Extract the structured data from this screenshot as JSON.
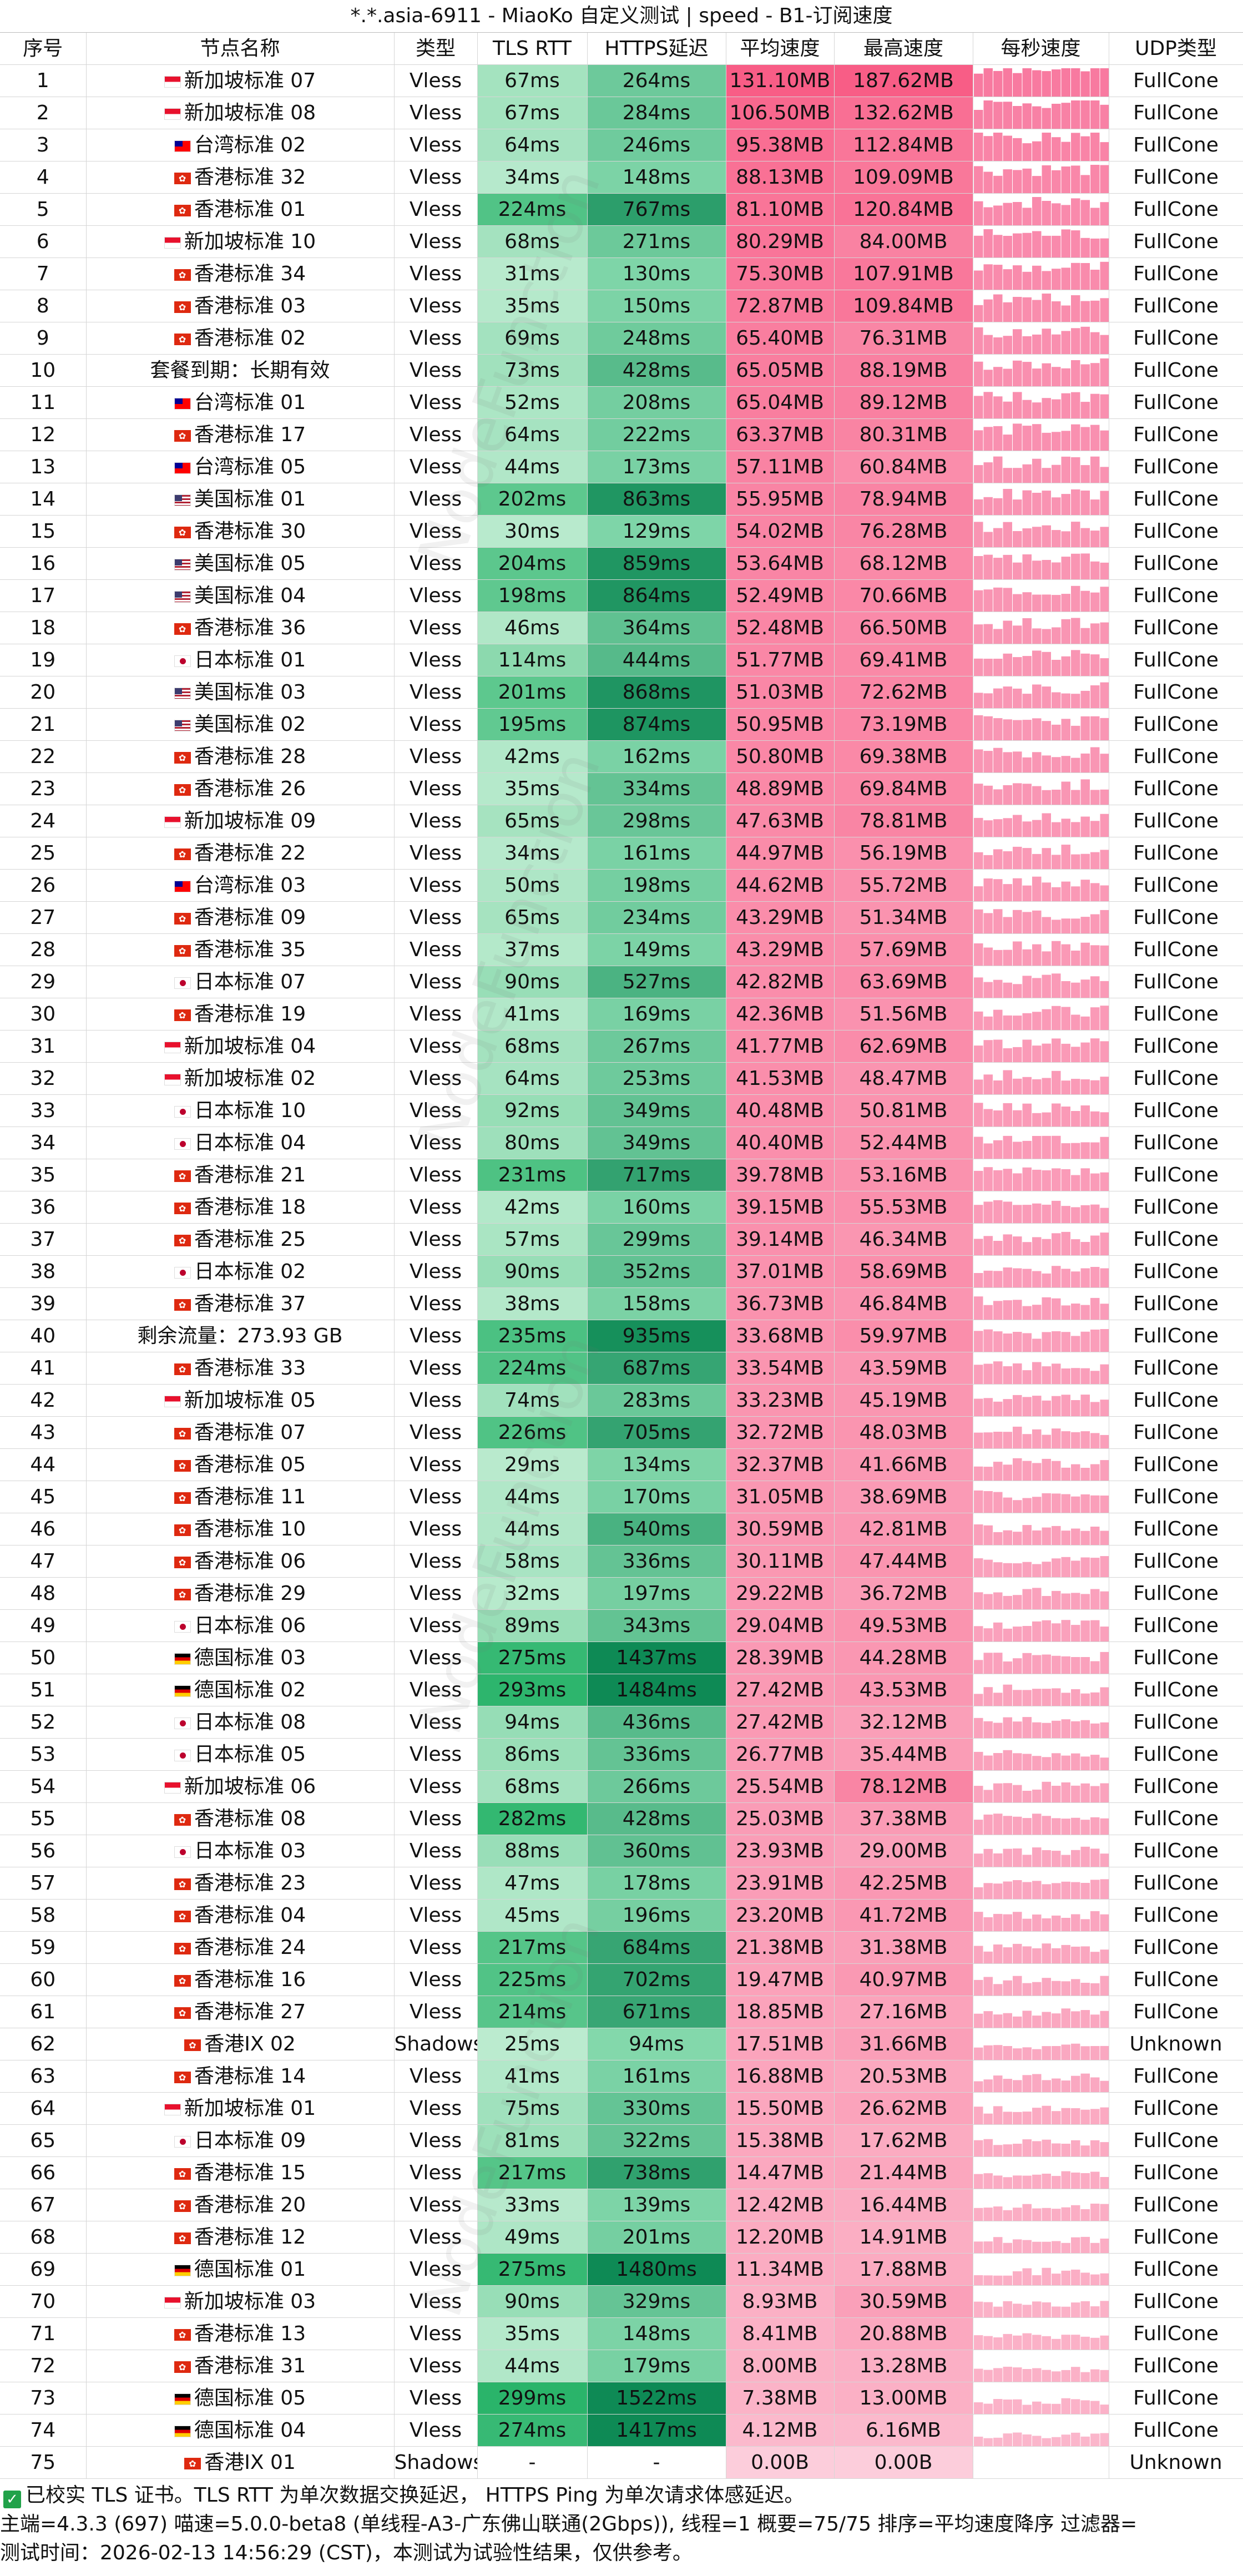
{
  "window_title": "*.*.asia-6911 - MiaoKo 自定义测试 | speed - B1-订阅速度",
  "watermark_text": "NodeFunction",
  "columns": [
    "序号",
    "节点名称",
    "类型",
    "TLS RTT",
    "HTTPS延迟",
    "平均速度",
    "最高速度",
    "每秒速度",
    "UDP类型"
  ],
  "rows": [
    {
      "id": "1",
      "flag": "sg",
      "name": "新加坡标准 07",
      "type": "Vless",
      "tls": "67ms",
      "https": "264ms",
      "avg": "131.10MB",
      "max": "187.62MB",
      "udp": "FullCone"
    },
    {
      "id": "2",
      "flag": "sg",
      "name": "新加坡标准 08",
      "type": "Vless",
      "tls": "67ms",
      "https": "284ms",
      "avg": "106.50MB",
      "max": "132.62MB",
      "udp": "FullCone"
    },
    {
      "id": "3",
      "flag": "tw",
      "name": "台湾标准 02",
      "type": "Vless",
      "tls": "64ms",
      "https": "246ms",
      "avg": "95.38MB",
      "max": "112.84MB",
      "udp": "FullCone"
    },
    {
      "id": "4",
      "flag": "hk",
      "name": "香港标准 32",
      "type": "Vless",
      "tls": "34ms",
      "https": "148ms",
      "avg": "88.13MB",
      "max": "109.09MB",
      "udp": "FullCone"
    },
    {
      "id": "5",
      "flag": "hk",
      "name": "香港标准 01",
      "type": "Vless",
      "tls": "224ms",
      "https": "767ms",
      "avg": "81.10MB",
      "max": "120.84MB",
      "udp": "FullCone"
    },
    {
      "id": "6",
      "flag": "sg",
      "name": "新加坡标准 10",
      "type": "Vless",
      "tls": "68ms",
      "https": "271ms",
      "avg": "80.29MB",
      "max": "84.00MB",
      "udp": "FullCone"
    },
    {
      "id": "7",
      "flag": "hk",
      "name": "香港标准 34",
      "type": "Vless",
      "tls": "31ms",
      "https": "130ms",
      "avg": "75.30MB",
      "max": "107.91MB",
      "udp": "FullCone"
    },
    {
      "id": "8",
      "flag": "hk",
      "name": "香港标准 03",
      "type": "Vless",
      "tls": "35ms",
      "https": "150ms",
      "avg": "72.87MB",
      "max": "109.84MB",
      "udp": "FullCone"
    },
    {
      "id": "9",
      "flag": "hk",
      "name": "香港标准 02",
      "type": "Vless",
      "tls": "69ms",
      "https": "248ms",
      "avg": "65.40MB",
      "max": "76.31MB",
      "udp": "FullCone"
    },
    {
      "id": "10",
      "flag": "none",
      "name": "套餐到期：长期有效",
      "type": "Vless",
      "tls": "73ms",
      "https": "428ms",
      "avg": "65.05MB",
      "max": "88.19MB",
      "udp": "FullCone"
    },
    {
      "id": "11",
      "flag": "tw",
      "name": "台湾标准 01",
      "type": "Vless",
      "tls": "52ms",
      "https": "208ms",
      "avg": "65.04MB",
      "max": "89.12MB",
      "udp": "FullCone"
    },
    {
      "id": "12",
      "flag": "hk",
      "name": "香港标准 17",
      "type": "Vless",
      "tls": "64ms",
      "https": "222ms",
      "avg": "63.37MB",
      "max": "80.31MB",
      "udp": "FullCone"
    },
    {
      "id": "13",
      "flag": "tw",
      "name": "台湾标准 05",
      "type": "Vless",
      "tls": "44ms",
      "https": "173ms",
      "avg": "57.11MB",
      "max": "60.84MB",
      "udp": "FullCone"
    },
    {
      "id": "14",
      "flag": "us",
      "name": "美国标准 01",
      "type": "Vless",
      "tls": "202ms",
      "https": "863ms",
      "avg": "55.95MB",
      "max": "78.94MB",
      "udp": "FullCone"
    },
    {
      "id": "15",
      "flag": "hk",
      "name": "香港标准 30",
      "type": "Vless",
      "tls": "30ms",
      "https": "129ms",
      "avg": "54.02MB",
      "max": "76.28MB",
      "udp": "FullCone"
    },
    {
      "id": "16",
      "flag": "us",
      "name": "美国标准 05",
      "type": "Vless",
      "tls": "204ms",
      "https": "859ms",
      "avg": "53.64MB",
      "max": "68.12MB",
      "udp": "FullCone"
    },
    {
      "id": "17",
      "flag": "us",
      "name": "美国标准 04",
      "type": "Vless",
      "tls": "198ms",
      "https": "864ms",
      "avg": "52.49MB",
      "max": "70.66MB",
      "udp": "FullCone"
    },
    {
      "id": "18",
      "flag": "hk",
      "name": "香港标准 36",
      "type": "Vless",
      "tls": "46ms",
      "https": "364ms",
      "avg": "52.48MB",
      "max": "66.50MB",
      "udp": "FullCone"
    },
    {
      "id": "19",
      "flag": "jp",
      "name": "日本标准 01",
      "type": "Vless",
      "tls": "114ms",
      "https": "444ms",
      "avg": "51.77MB",
      "max": "69.41MB",
      "udp": "FullCone"
    },
    {
      "id": "20",
      "flag": "us",
      "name": "美国标准 03",
      "type": "Vless",
      "tls": "201ms",
      "https": "868ms",
      "avg": "51.03MB",
      "max": "72.62MB",
      "udp": "FullCone"
    },
    {
      "id": "21",
      "flag": "us",
      "name": "美国标准 02",
      "type": "Vless",
      "tls": "195ms",
      "https": "874ms",
      "avg": "50.95MB",
      "max": "73.19MB",
      "udp": "FullCone"
    },
    {
      "id": "22",
      "flag": "hk",
      "name": "香港标准 28",
      "type": "Vless",
      "tls": "42ms",
      "https": "162ms",
      "avg": "50.80MB",
      "max": "69.38MB",
      "udp": "FullCone"
    },
    {
      "id": "23",
      "flag": "hk",
      "name": "香港标准 26",
      "type": "Vless",
      "tls": "35ms",
      "https": "334ms",
      "avg": "48.89MB",
      "max": "69.84MB",
      "udp": "FullCone"
    },
    {
      "id": "24",
      "flag": "sg",
      "name": "新加坡标准 09",
      "type": "Vless",
      "tls": "65ms",
      "https": "298ms",
      "avg": "47.63MB",
      "max": "78.81MB",
      "udp": "FullCone"
    },
    {
      "id": "25",
      "flag": "hk",
      "name": "香港标准 22",
      "type": "Vless",
      "tls": "34ms",
      "https": "161ms",
      "avg": "44.97MB",
      "max": "56.19MB",
      "udp": "FullCone"
    },
    {
      "id": "26",
      "flag": "tw",
      "name": "台湾标准 03",
      "type": "Vless",
      "tls": "50ms",
      "https": "198ms",
      "avg": "44.62MB",
      "max": "55.72MB",
      "udp": "FullCone"
    },
    {
      "id": "27",
      "flag": "hk",
      "name": "香港标准 09",
      "type": "Vless",
      "tls": "65ms",
      "https": "234ms",
      "avg": "43.29MB",
      "max": "51.34MB",
      "udp": "FullCone"
    },
    {
      "id": "28",
      "flag": "hk",
      "name": "香港标准 35",
      "type": "Vless",
      "tls": "37ms",
      "https": "149ms",
      "avg": "43.29MB",
      "max": "57.69MB",
      "udp": "FullCone"
    },
    {
      "id": "29",
      "flag": "jp",
      "name": "日本标准 07",
      "type": "Vless",
      "tls": "90ms",
      "https": "527ms",
      "avg": "42.82MB",
      "max": "63.69MB",
      "udp": "FullCone"
    },
    {
      "id": "30",
      "flag": "hk",
      "name": "香港标准 19",
      "type": "Vless",
      "tls": "41ms",
      "https": "169ms",
      "avg": "42.36MB",
      "max": "51.56MB",
      "udp": "FullCone"
    },
    {
      "id": "31",
      "flag": "sg",
      "name": "新加坡标准 04",
      "type": "Vless",
      "tls": "68ms",
      "https": "267ms",
      "avg": "41.77MB",
      "max": "62.69MB",
      "udp": "FullCone"
    },
    {
      "id": "32",
      "flag": "sg",
      "name": "新加坡标准 02",
      "type": "Vless",
      "tls": "64ms",
      "https": "253ms",
      "avg": "41.53MB",
      "max": "48.47MB",
      "udp": "FullCone"
    },
    {
      "id": "33",
      "flag": "jp",
      "name": "日本标准 10",
      "type": "Vless",
      "tls": "92ms",
      "https": "349ms",
      "avg": "40.48MB",
      "max": "50.81MB",
      "udp": "FullCone"
    },
    {
      "id": "34",
      "flag": "jp",
      "name": "日本标准 04",
      "type": "Vless",
      "tls": "80ms",
      "https": "349ms",
      "avg": "40.40MB",
      "max": "52.44MB",
      "udp": "FullCone"
    },
    {
      "id": "35",
      "flag": "hk",
      "name": "香港标准 21",
      "type": "Vless",
      "tls": "231ms",
      "https": "717ms",
      "avg": "39.78MB",
      "max": "53.16MB",
      "udp": "FullCone"
    },
    {
      "id": "36",
      "flag": "hk",
      "name": "香港标准 18",
      "type": "Vless",
      "tls": "42ms",
      "https": "160ms",
      "avg": "39.15MB",
      "max": "55.53MB",
      "udp": "FullCone"
    },
    {
      "id": "37",
      "flag": "hk",
      "name": "香港标准 25",
      "type": "Vless",
      "tls": "57ms",
      "https": "299ms",
      "avg": "39.14MB",
      "max": "46.34MB",
      "udp": "FullCone"
    },
    {
      "id": "38",
      "flag": "jp",
      "name": "日本标准 02",
      "type": "Vless",
      "tls": "90ms",
      "https": "352ms",
      "avg": "37.01MB",
      "max": "58.69MB",
      "udp": "FullCone"
    },
    {
      "id": "39",
      "flag": "hk",
      "name": "香港标准 37",
      "type": "Vless",
      "tls": "38ms",
      "https": "158ms",
      "avg": "36.73MB",
      "max": "46.84MB",
      "udp": "FullCone"
    },
    {
      "id": "40",
      "flag": "none",
      "name": "剩余流量：273.93 GB",
      "type": "Vless",
      "tls": "235ms",
      "https": "935ms",
      "avg": "33.68MB",
      "max": "59.97MB",
      "udp": "FullCone"
    },
    {
      "id": "41",
      "flag": "hk",
      "name": "香港标准 33",
      "type": "Vless",
      "tls": "224ms",
      "https": "687ms",
      "avg": "33.54MB",
      "max": "43.59MB",
      "udp": "FullCone"
    },
    {
      "id": "42",
      "flag": "sg",
      "name": "新加坡标准 05",
      "type": "Vless",
      "tls": "74ms",
      "https": "283ms",
      "avg": "33.23MB",
      "max": "45.19MB",
      "udp": "FullCone"
    },
    {
      "id": "43",
      "flag": "hk",
      "name": "香港标准 07",
      "type": "Vless",
      "tls": "226ms",
      "https": "705ms",
      "avg": "32.72MB",
      "max": "48.03MB",
      "udp": "FullCone"
    },
    {
      "id": "44",
      "flag": "hk",
      "name": "香港标准 05",
      "type": "Vless",
      "tls": "29ms",
      "https": "134ms",
      "avg": "32.37MB",
      "max": "41.66MB",
      "udp": "FullCone"
    },
    {
      "id": "45",
      "flag": "hk",
      "name": "香港标准 11",
      "type": "Vless",
      "tls": "44ms",
      "https": "170ms",
      "avg": "31.05MB",
      "max": "38.69MB",
      "udp": "FullCone"
    },
    {
      "id": "46",
      "flag": "hk",
      "name": "香港标准 10",
      "type": "Vless",
      "tls": "44ms",
      "https": "540ms",
      "avg": "30.59MB",
      "max": "42.81MB",
      "udp": "FullCone"
    },
    {
      "id": "47",
      "flag": "hk",
      "name": "香港标准 06",
      "type": "Vless",
      "tls": "58ms",
      "https": "336ms",
      "avg": "30.11MB",
      "max": "47.44MB",
      "udp": "FullCone"
    },
    {
      "id": "48",
      "flag": "hk",
      "name": "香港标准 29",
      "type": "Vless",
      "tls": "32ms",
      "https": "197ms",
      "avg": "29.22MB",
      "max": "36.72MB",
      "udp": "FullCone"
    },
    {
      "id": "49",
      "flag": "jp",
      "name": "日本标准 06",
      "type": "Vless",
      "tls": "89ms",
      "https": "343ms",
      "avg": "29.04MB",
      "max": "49.53MB",
      "udp": "FullCone"
    },
    {
      "id": "50",
      "flag": "de",
      "name": "德国标准 03",
      "type": "Vless",
      "tls": "275ms",
      "https": "1437ms",
      "avg": "28.39MB",
      "max": "44.28MB",
      "udp": "FullCone"
    },
    {
      "id": "51",
      "flag": "de",
      "name": "德国标准 02",
      "type": "Vless",
      "tls": "293ms",
      "https": "1484ms",
      "avg": "27.42MB",
      "max": "43.53MB",
      "udp": "FullCone"
    },
    {
      "id": "52",
      "flag": "jp",
      "name": "日本标准 08",
      "type": "Vless",
      "tls": "94ms",
      "https": "436ms",
      "avg": "27.42MB",
      "max": "32.12MB",
      "udp": "FullCone"
    },
    {
      "id": "53",
      "flag": "jp",
      "name": "日本标准 05",
      "type": "Vless",
      "tls": "86ms",
      "https": "336ms",
      "avg": "26.77MB",
      "max": "35.44MB",
      "udp": "FullCone"
    },
    {
      "id": "54",
      "flag": "sg",
      "name": "新加坡标准 06",
      "type": "Vless",
      "tls": "68ms",
      "https": "266ms",
      "avg": "25.54MB",
      "max": "78.12MB",
      "udp": "FullCone"
    },
    {
      "id": "55",
      "flag": "hk",
      "name": "香港标准 08",
      "type": "Vless",
      "tls": "282ms",
      "https": "428ms",
      "avg": "25.03MB",
      "max": "37.38MB",
      "udp": "FullCone"
    },
    {
      "id": "56",
      "flag": "jp",
      "name": "日本标准 03",
      "type": "Vless",
      "tls": "88ms",
      "https": "360ms",
      "avg": "23.93MB",
      "max": "29.00MB",
      "udp": "FullCone"
    },
    {
      "id": "57",
      "flag": "hk",
      "name": "香港标准 23",
      "type": "Vless",
      "tls": "47ms",
      "https": "178ms",
      "avg": "23.91MB",
      "max": "42.25MB",
      "udp": "FullCone"
    },
    {
      "id": "58",
      "flag": "hk",
      "name": "香港标准 04",
      "type": "Vless",
      "tls": "45ms",
      "https": "196ms",
      "avg": "23.20MB",
      "max": "41.72MB",
      "udp": "FullCone"
    },
    {
      "id": "59",
      "flag": "hk",
      "name": "香港标准 24",
      "type": "Vless",
      "tls": "217ms",
      "https": "684ms",
      "avg": "21.38MB",
      "max": "31.38MB",
      "udp": "FullCone"
    },
    {
      "id": "60",
      "flag": "hk",
      "name": "香港标准 16",
      "type": "Vless",
      "tls": "225ms",
      "https": "702ms",
      "avg": "19.47MB",
      "max": "40.97MB",
      "udp": "FullCone"
    },
    {
      "id": "61",
      "flag": "hk",
      "name": "香港标准 27",
      "type": "Vless",
      "tls": "214ms",
      "https": "671ms",
      "avg": "18.85MB",
      "max": "27.16MB",
      "udp": "FullCone"
    },
    {
      "id": "62",
      "flag": "hk",
      "name": "香港IX 02",
      "type": "Shadowsocks",
      "tls": "25ms",
      "https": "94ms",
      "avg": "17.51MB",
      "max": "31.66MB",
      "udp": "Unknown"
    },
    {
      "id": "63",
      "flag": "hk",
      "name": "香港标准 14",
      "type": "Vless",
      "tls": "41ms",
      "https": "161ms",
      "avg": "16.88MB",
      "max": "20.53MB",
      "udp": "FullCone"
    },
    {
      "id": "64",
      "flag": "sg",
      "name": "新加坡标准 01",
      "type": "Vless",
      "tls": "75ms",
      "https": "330ms",
      "avg": "15.50MB",
      "max": "26.62MB",
      "udp": "FullCone"
    },
    {
      "id": "65",
      "flag": "jp",
      "name": "日本标准 09",
      "type": "Vless",
      "tls": "81ms",
      "https": "322ms",
      "avg": "15.38MB",
      "max": "17.62MB",
      "udp": "FullCone"
    },
    {
      "id": "66",
      "flag": "hk",
      "name": "香港标准 15",
      "type": "Vless",
      "tls": "217ms",
      "https": "738ms",
      "avg": "14.47MB",
      "max": "21.44MB",
      "udp": "FullCone"
    },
    {
      "id": "67",
      "flag": "hk",
      "name": "香港标准 20",
      "type": "Vless",
      "tls": "33ms",
      "https": "139ms",
      "avg": "12.42MB",
      "max": "16.44MB",
      "udp": "FullCone"
    },
    {
      "id": "68",
      "flag": "hk",
      "name": "香港标准 12",
      "type": "Vless",
      "tls": "49ms",
      "https": "201ms",
      "avg": "12.20MB",
      "max": "14.91MB",
      "udp": "FullCone"
    },
    {
      "id": "69",
      "flag": "de",
      "name": "德国标准 01",
      "type": "Vless",
      "tls": "275ms",
      "https": "1480ms",
      "avg": "11.34MB",
      "max": "17.88MB",
      "udp": "FullCone"
    },
    {
      "id": "70",
      "flag": "sg",
      "name": "新加坡标准 03",
      "type": "Vless",
      "tls": "90ms",
      "https": "329ms",
      "avg": "8.93MB",
      "max": "30.59MB",
      "udp": "FullCone"
    },
    {
      "id": "71",
      "flag": "hk",
      "name": "香港标准 13",
      "type": "Vless",
      "tls": "35ms",
      "https": "148ms",
      "avg": "8.41MB",
      "max": "20.88MB",
      "udp": "FullCone"
    },
    {
      "id": "72",
      "flag": "hk",
      "name": "香港标准 31",
      "type": "Vless",
      "tls": "44ms",
      "https": "179ms",
      "avg": "8.00MB",
      "max": "13.28MB",
      "udp": "FullCone"
    },
    {
      "id": "73",
      "flag": "de",
      "name": "德国标准 05",
      "type": "Vless",
      "tls": "299ms",
      "https": "1522ms",
      "avg": "7.38MB",
      "max": "13.00MB",
      "udp": "FullCone"
    },
    {
      "id": "74",
      "flag": "de",
      "name": "德国标准 04",
      "type": "Vless",
      "tls": "274ms",
      "https": "1417ms",
      "avg": "4.12MB",
      "max": "6.16MB",
      "udp": "FullCone"
    },
    {
      "id": "75",
      "flag": "hk",
      "name": "香港IX 01",
      "type": "Shadowsocks",
      "tls": "-",
      "https": "-",
      "avg": "0.00B",
      "max": "0.00B",
      "udp": "Unknown"
    }
  ],
  "footer": {
    "line1": "已校实 TLS 证书。TLS RTT 为单次数据交换延迟， HTTPS Ping 为单次请求体感延迟。",
    "line2": "主端=4.3.3 (697) 喵速=5.0.0-beta8 (单线程-A3-广东佛山联通(2Gbps)), 线程=1 概要=75/75 排序=平均速度降序 过滤器=",
    "line3": "测试时间：2026-02-13 14:56:29 (CST)，本测试为试验性结果，仅供参考。"
  },
  "colors": {
    "tls_light": "#c8f0d8",
    "tls_dark": "#29b46a",
    "https_light": "#8fe0b4",
    "https_dark": "#0e8a55",
    "speed_light": "#fde6ee",
    "speed_dark": "#f85d86",
    "spark_bar": "#f87aa0"
  }
}
